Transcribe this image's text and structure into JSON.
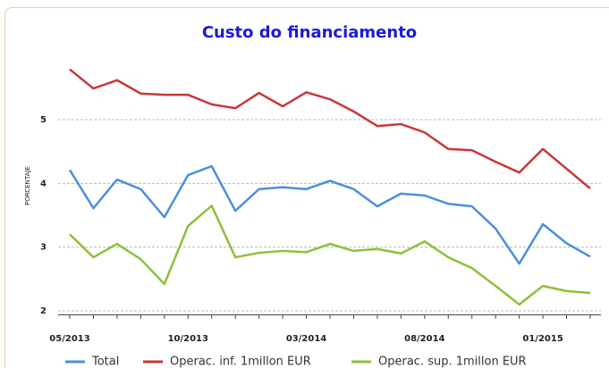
{
  "chart_data": {
    "type": "line",
    "title": "Custo do financiamento",
    "y_label": "PORCENTAJE",
    "categories": [
      "05/2013",
      null,
      null,
      null,
      null,
      "10/2013",
      null,
      null,
      null,
      null,
      "03/2014",
      null,
      null,
      null,
      null,
      "08/2014",
      null,
      null,
      null,
      null,
      "01/2015",
      null,
      null
    ],
    "series": [
      {
        "name": "Total",
        "color": "#4a8fdc",
        "values": [
          4.21,
          3.61,
          4.06,
          3.91,
          3.47,
          4.13,
          4.27,
          3.57,
          3.91,
          3.94,
          3.91,
          4.04,
          3.91,
          3.64,
          3.84,
          3.81,
          3.68,
          3.64,
          3.29,
          2.74,
          3.36,
          3.06,
          2.85
        ]
      },
      {
        "name": "Operac. inf. 1millon EUR",
        "color": "#c8373a",
        "values": [
          5.79,
          5.49,
          5.62,
          5.41,
          5.39,
          5.39,
          5.24,
          5.18,
          5.42,
          5.21,
          5.43,
          5.32,
          5.13,
          4.9,
          4.93,
          4.8,
          4.54,
          4.52,
          4.34,
          4.17,
          4.54,
          4.23,
          3.92
        ]
      },
      {
        "name": "Operac. sup. 1millon EUR",
        "color": "#8dc03a",
        "values": [
          3.2,
          2.84,
          3.05,
          2.81,
          2.42,
          3.33,
          3.65,
          2.84,
          2.91,
          2.94,
          2.92,
          3.05,
          2.94,
          2.97,
          2.9,
          3.09,
          2.84,
          2.67,
          2.39,
          2.1,
          2.39,
          2.31,
          2.28
        ]
      }
    ],
    "ylim": [
      1.9,
      6.05
    ],
    "yticks": [
      2,
      3,
      4,
      5
    ],
    "grid": true
  }
}
